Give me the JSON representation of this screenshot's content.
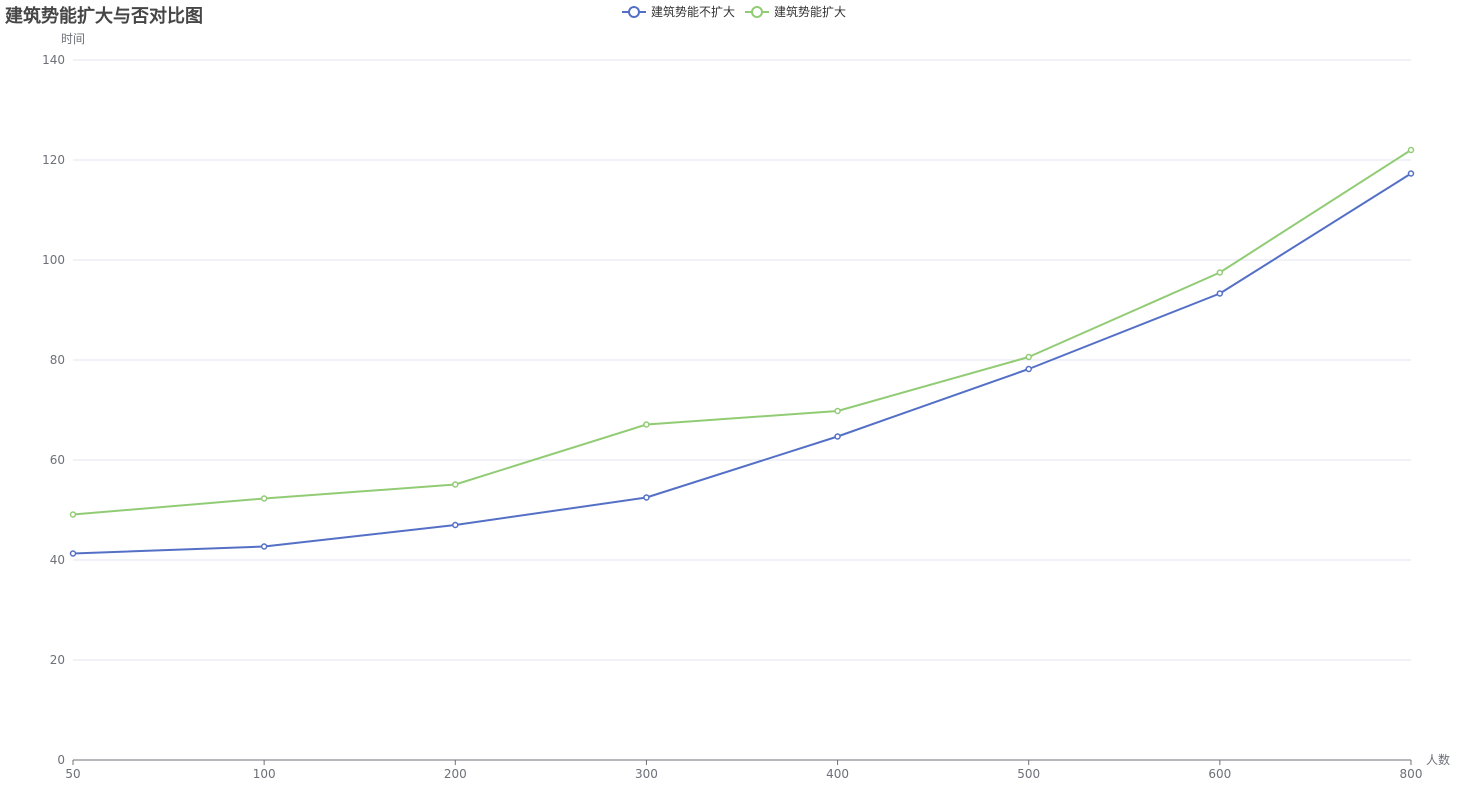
{
  "chart_data": {
    "type": "line",
    "title": "建筑势能扩大与否对比图",
    "xlabel": "人数",
    "ylabel": "时间",
    "categories": [
      "50",
      "100",
      "200",
      "300",
      "400",
      "500",
      "600",
      "800"
    ],
    "ylim": [
      0,
      140
    ],
    "yticks": [
      0,
      20,
      40,
      60,
      80,
      100,
      120,
      140
    ],
    "grid": true,
    "legend_position": "top-center",
    "series": [
      {
        "name": "建筑势能不扩大",
        "color": "#5470c6",
        "values": [
          41.3,
          42.7,
          47.0,
          52.5,
          64.7,
          78.2,
          93.3,
          117.3
        ]
      },
      {
        "name": "建筑势能扩大",
        "color": "#91cc75",
        "values": [
          49.1,
          52.3,
          55.1,
          67.1,
          69.8,
          80.6,
          97.5,
          122.0
        ]
      }
    ]
  }
}
